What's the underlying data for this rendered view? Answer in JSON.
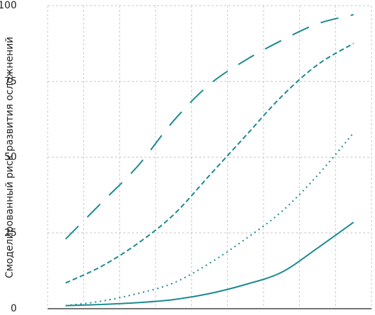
{
  "chart_data": {
    "type": "line",
    "ylabel": "Смоделированный риск развития осложнений",
    "xlabel": "",
    "ylim": [
      0,
      100
    ],
    "y_ticks": [
      "0",
      "25",
      "50",
      "75",
      "100"
    ],
    "x": [
      1,
      2,
      3,
      4,
      5,
      6,
      7,
      8,
      9
    ],
    "grid": true,
    "line_color": "#1a8a8f",
    "series": [
      {
        "style": "solid",
        "values": [
          1,
          1.4,
          2,
          3,
          5,
          8,
          12,
          20,
          28.5
        ]
      },
      {
        "style": "dotted",
        "values": [
          1,
          2.5,
          5,
          8.5,
          15,
          23,
          32,
          44,
          58
        ]
      },
      {
        "style": "dashed",
        "values": [
          8.5,
          14,
          21.5,
          31,
          44,
          57,
          70,
          80.5,
          87.5
        ]
      },
      {
        "style": "long-dashed",
        "values": [
          23,
          35,
          47,
          62,
          74,
          82,
          88.5,
          94,
          97
        ]
      }
    ]
  }
}
